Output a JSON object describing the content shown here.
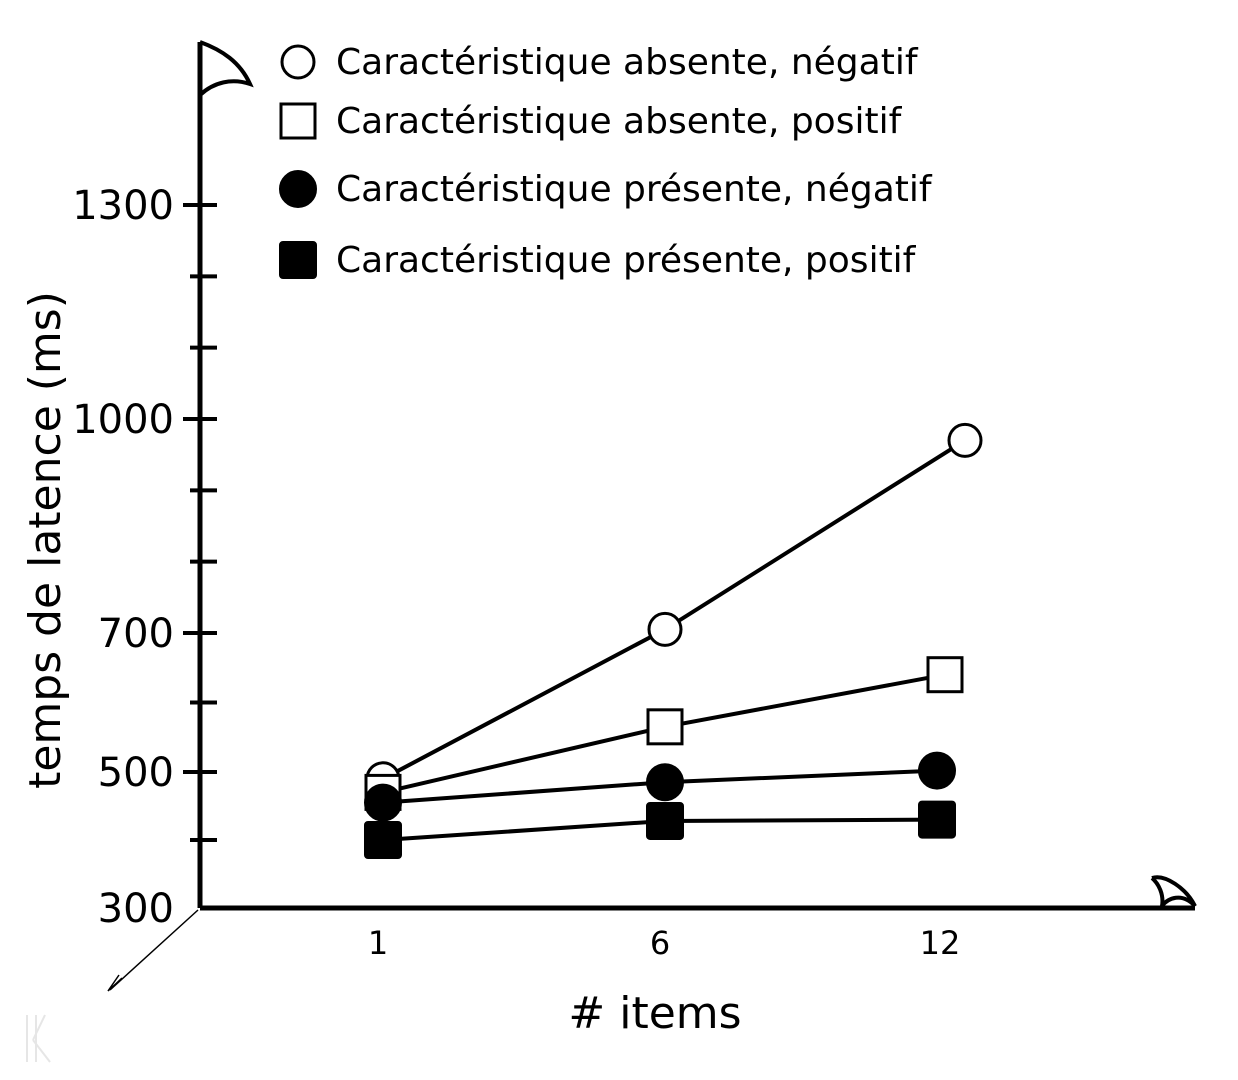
{
  "chart_data": {
    "type": "line",
    "title": "",
    "xlabel": "# items",
    "ylabel": "temps de latence (ms)",
    "x": [
      1,
      6,
      12
    ],
    "x_tick_labels": [
      "1",
      "6",
      "12"
    ],
    "y_ticks": [
      300,
      500,
      700,
      1000,
      1300
    ],
    "y_tick_labels": [
      "300",
      "500",
      "700",
      "1000",
      "1300"
    ],
    "y_minor_ticks": [
      400,
      600,
      800,
      900,
      1100,
      1200
    ],
    "ylim": [
      300,
      1400
    ],
    "grid": false,
    "legend_position": "top-left",
    "series": [
      {
        "name": "Caractéristique absente, négatif",
        "marker": "circle-open",
        "values": [
          490,
          705,
          970
        ]
      },
      {
        "name": "Caractéristique absente, positif",
        "marker": "square-open",
        "values": [
          470,
          565,
          640
        ]
      },
      {
        "name": "Caractéristique présente, négatif",
        "marker": "circle-filled",
        "values": [
          455,
          485,
          502
        ]
      },
      {
        "name": "Caractéristique présente, positif",
        "marker": "square-filled",
        "values": [
          400,
          428,
          430
        ]
      }
    ],
    "colors": {
      "line": "#000000",
      "background": "#ffffff",
      "open_marker_fill": "#ffffff",
      "filled_marker_fill": "#000000"
    }
  }
}
